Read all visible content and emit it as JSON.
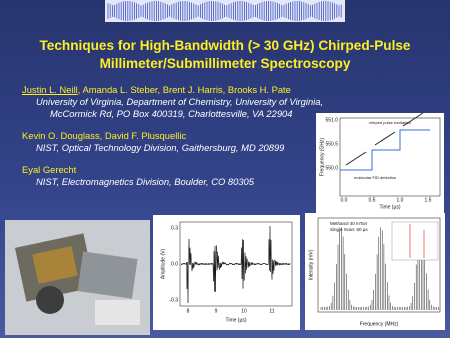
{
  "header": {
    "title_lines": [
      "Techniques for High-Bandwidth (> 30 GHz) Chirped-Pulse",
      "Millimeter/Submillimeter Spectroscopy"
    ]
  },
  "authors": [
    {
      "lead": "Justin L. Neill",
      "names": ", Amanda L. Steber, Brent J. Harris, Brooks H. Pate",
      "affiliation_lines": [
        "University of Virginia, Department of Chemistry, University of Virginia,",
        "McCormick Rd, PO Box 400319, Charlottesville, VA 22904"
      ]
    },
    {
      "names": "Kevin O. Douglass, David F. Plusquellic",
      "affiliation_lines": [
        "NIST, Optical Technology Division, Gaithersburg, MD 20899"
      ]
    },
    {
      "names": "Eyal Gerecht",
      "affiliation_lines": [
        "NIST, Electromagnetics Division, Boulder, CO 80305"
      ]
    }
  ],
  "figures": {
    "frequency_plot": {
      "y_label": "Frequency (GHz)",
      "x_label": "Time (µs)",
      "y_ticks": [
        "551.0",
        "550.5",
        "550.0"
      ],
      "x_ticks": [
        "0.0",
        "0.5",
        "1.0",
        "1.5"
      ],
      "annotations": [
        "chirped pulse excitation",
        "molecular FID detection"
      ]
    },
    "fid_plot": {
      "y_label": "Amplitude (V)",
      "x_label": "Time (µs)",
      "y_ticks": [
        "0.3",
        "0.0",
        "-0.3"
      ],
      "x_ticks": [
        "8",
        "9",
        "10",
        "11"
      ]
    },
    "spectrum_plot": {
      "annotation_lines": [
        "Methanol 40 mTorr",
        "Single Scan: 60 µs"
      ],
      "y_label": "Intensity (mV)",
      "x_label": "Frequency (MHz)"
    }
  }
}
